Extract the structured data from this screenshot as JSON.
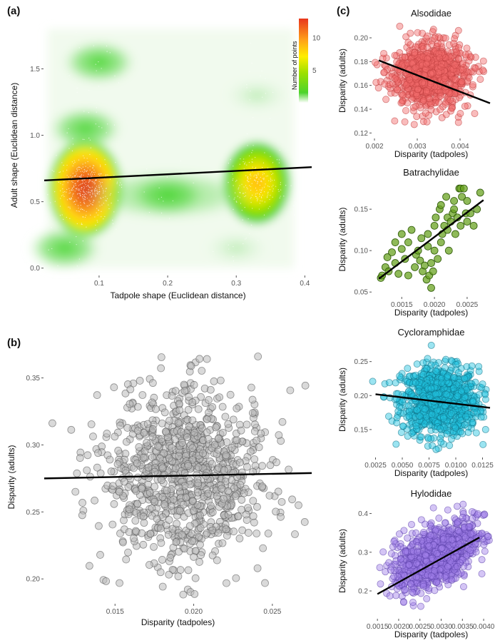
{
  "colors": {
    "family_alsodidae": "#f26b6b",
    "family_batrachylidae": "#6aa322",
    "family_cycloramphidae": "#22c3e0",
    "family_hylodidae": "#a07fe8",
    "panel_b_points": "#b9b9b9",
    "trend_line": "#000000"
  },
  "chart_data": [
    {
      "id": "a",
      "panel_label": "(a)",
      "type": "heatmap",
      "xlabel": "Tadpole shape (Euclidean distance)",
      "ylabel": "Adult shape (Euclidean distance)",
      "xlim": [
        0.02,
        0.41
      ],
      "ylim": [
        -0.05,
        1.9
      ],
      "xticks": [
        0.1,
        0.2,
        0.3,
        0.4
      ],
      "xtick_labels": [
        "0.1",
        "0.2",
        "0.3",
        "0.4"
      ],
      "yticks": [
        0.0,
        0.5,
        1.0,
        1.5
      ],
      "ytick_labels": [
        "0.0",
        "0.5",
        "1.0",
        "1.5"
      ],
      "legend": {
        "title": "Number of points",
        "ticks": [
          5,
          10
        ],
        "tick_labels": [
          "5",
          "10"
        ],
        "range": [
          0,
          13
        ],
        "position": "top-right"
      },
      "density_clusters": [
        {
          "x": 0.08,
          "y": 0.6,
          "intensity": 13
        },
        {
          "x": 0.33,
          "y": 0.64,
          "intensity": 8
        },
        {
          "x": 0.08,
          "y": 1.05,
          "intensity": 3
        },
        {
          "x": 0.1,
          "y": 1.55,
          "intensity": 2
        },
        {
          "x": 0.2,
          "y": 0.55,
          "intensity": 2
        },
        {
          "x": 0.05,
          "y": 0.15,
          "intensity": 2
        },
        {
          "x": 0.33,
          "y": 1.3,
          "intensity": 1
        },
        {
          "x": 0.3,
          "y": 0.15,
          "intensity": 1
        }
      ],
      "trend": {
        "x": [
          0.02,
          0.41
        ],
        "y": [
          0.66,
          0.76
        ]
      }
    },
    {
      "id": "b",
      "panel_label": "(b)",
      "type": "scatter",
      "xlabel": "Disparity (tadpoles)",
      "ylabel": "Disparity (adults)",
      "xlim": [
        0.0105,
        0.0275
      ],
      "ylim": [
        0.182,
        0.37
      ],
      "xticks": [
        0.015,
        0.02,
        0.025
      ],
      "xtick_labels": [
        "0.015",
        "0.020",
        "0.025"
      ],
      "yticks": [
        0.2,
        0.25,
        0.3,
        0.35
      ],
      "ytick_labels": [
        "0.20",
        "0.25",
        "0.30",
        "0.35"
      ],
      "cloud": {
        "n": 1000,
        "x_mean": 0.0195,
        "x_sd": 0.0027,
        "y_mean": 0.277,
        "y_sd": 0.033
      },
      "trend": {
        "x": [
          0.0105,
          0.0275
        ],
        "y": [
          0.275,
          0.279
        ]
      }
    },
    {
      "id": "c1",
      "panel_label": "(c)",
      "type": "scatter",
      "title": "Alsodidae",
      "xlabel": "Disparity (tadpoles)",
      "ylabel": "Disparity (adults)",
      "xlim": [
        0.00195,
        0.0047
      ],
      "ylim": [
        0.116,
        0.212
      ],
      "xticks": [
        0.002,
        0.003,
        0.004
      ],
      "xtick_labels": [
        "0.002",
        "0.003",
        "0.004"
      ],
      "yticks": [
        0.12,
        0.14,
        0.16,
        0.18,
        0.2
      ],
      "ytick_labels": [
        "0.12",
        "0.14",
        "0.16",
        "0.18",
        "0.20"
      ],
      "cloud": {
        "n": 900,
        "x_mean": 0.0033,
        "x_sd": 0.00045,
        "y_mean": 0.168,
        "y_sd": 0.014
      },
      "trend": {
        "x": [
          0.0021,
          0.0047
        ],
        "y": [
          0.181,
          0.145
        ]
      }
    },
    {
      "id": "c2",
      "type": "scatter",
      "title": "Batrachylidae",
      "xlabel": "Disparity (tadpoles)",
      "ylabel": "Disparity (adults)",
      "xlim": [
        0.00105,
        0.00285
      ],
      "ylim": [
        0.045,
        0.182
      ],
      "xticks": [
        0.0015,
        0.002,
        0.0025
      ],
      "xtick_labels": [
        "0.0015",
        "0.0020",
        "0.0025"
      ],
      "yticks": [
        0.05,
        0.1,
        0.15
      ],
      "ytick_labels": [
        "0.05",
        "0.10",
        "0.15"
      ],
      "points": [
        [
          0.00118,
          0.067
        ],
        [
          0.0012,
          0.07
        ],
        [
          0.00125,
          0.08
        ],
        [
          0.00128,
          0.092
        ],
        [
          0.0013,
          0.075
        ],
        [
          0.00135,
          0.098
        ],
        [
          0.0014,
          0.085
        ],
        [
          0.0014,
          0.11
        ],
        [
          0.00145,
          0.072
        ],
        [
          0.0015,
          0.102
        ],
        [
          0.0015,
          0.12
        ],
        [
          0.00155,
          0.09
        ],
        [
          0.0016,
          0.11
        ],
        [
          0.0016,
          0.07
        ],
        [
          0.00165,
          0.125
        ],
        [
          0.0017,
          0.08
        ],
        [
          0.00172,
          0.095
        ],
        [
          0.00175,
          0.1
        ],
        [
          0.00178,
          0.088
        ],
        [
          0.0018,
          0.115
        ],
        [
          0.00182,
          0.075
        ],
        [
          0.00185,
          0.082
        ],
        [
          0.00188,
          0.065
        ],
        [
          0.0019,
          0.105
        ],
        [
          0.0019,
          0.12
        ],
        [
          0.00192,
          0.07
        ],
        [
          0.00195,
          0.085
        ],
        [
          0.00195,
          0.055
        ],
        [
          0.00198,
          0.075
        ],
        [
          0.002,
          0.1
        ],
        [
          0.002,
          0.13
        ],
        [
          0.00202,
          0.14
        ],
        [
          0.00205,
          0.09
        ],
        [
          0.00208,
          0.15
        ],
        [
          0.0021,
          0.11
        ],
        [
          0.0021,
          0.155
        ],
        [
          0.00212,
          0.12
        ],
        [
          0.00215,
          0.13
        ],
        [
          0.00218,
          0.165
        ],
        [
          0.0022,
          0.125
        ],
        [
          0.0022,
          0.14
        ],
        [
          0.00222,
          0.1
        ],
        [
          0.00225,
          0.135
        ],
        [
          0.00228,
          0.145
        ],
        [
          0.0023,
          0.15
        ],
        [
          0.0023,
          0.16
        ],
        [
          0.00232,
          0.12
        ],
        [
          0.00235,
          0.14
        ],
        [
          0.00238,
          0.175
        ],
        [
          0.0024,
          0.13
        ],
        [
          0.0024,
          0.175
        ],
        [
          0.00242,
          0.165
        ],
        [
          0.00245,
          0.175
        ],
        [
          0.00248,
          0.145
        ],
        [
          0.0025,
          0.16
        ],
        [
          0.0025,
          0.135
        ],
        [
          0.00255,
          0.145
        ],
        [
          0.0026,
          0.13
        ],
        [
          0.00265,
          0.15
        ],
        [
          0.0027,
          0.17
        ]
      ],
      "trend": {
        "x": [
          0.00115,
          0.00275
        ],
        "y": [
          0.066,
          0.161
        ]
      }
    },
    {
      "id": "c3",
      "type": "scatter",
      "title": "Cycloramphidae",
      "xlabel": "Disparity (tadpoles)",
      "ylabel": "Disparity (adults)",
      "xlim": [
        0.0022,
        0.0132
      ],
      "ylim": [
        0.11,
        0.278
      ],
      "xticks": [
        0.0025,
        0.005,
        0.0075,
        0.01,
        0.0125
      ],
      "xtick_labels": [
        "0.0025",
        "0.0050",
        "0.0075",
        "0.0100",
        "0.0125"
      ],
      "yticks": [
        0.15,
        0.2,
        0.25
      ],
      "ytick_labels": [
        "0.15",
        "0.20",
        "0.25"
      ],
      "cloud": {
        "n": 1000,
        "x_mean": 0.0085,
        "x_sd": 0.0018,
        "y_mean": 0.192,
        "y_sd": 0.025
      },
      "trend": {
        "x": [
          0.0025,
          0.0132
        ],
        "y": [
          0.202,
          0.182
        ]
      }
    },
    {
      "id": "c4",
      "type": "scatter",
      "title": "Hylodidae",
      "xlabel": "Disparity (tadpoles)",
      "ylabel": "Disparity (adults)",
      "xlim": [
        0.00138,
        0.00415
      ],
      "ylim": [
        0.13,
        0.425
      ],
      "xticks": [
        0.0015,
        0.002,
        0.0025,
        0.003,
        0.0035,
        0.004
      ],
      "xtick_labels": [
        "0.0015",
        "0.0020",
        "0.0025",
        "0.0030",
        "0.0035",
        "0.0040"
      ],
      "yticks": [
        0.2,
        0.3,
        0.4
      ],
      "ytick_labels": [
        "0.2",
        "0.3",
        "0.4"
      ],
      "cloud": {
        "n": 1000,
        "x_mean": 0.0029,
        "x_sd": 0.0005,
        "y_mean": 0.29,
        "y_sd": 0.045,
        "corr": 0.5
      },
      "trend": {
        "x": [
          0.0015,
          0.0039
        ],
        "y": [
          0.192,
          0.338
        ]
      }
    }
  ]
}
